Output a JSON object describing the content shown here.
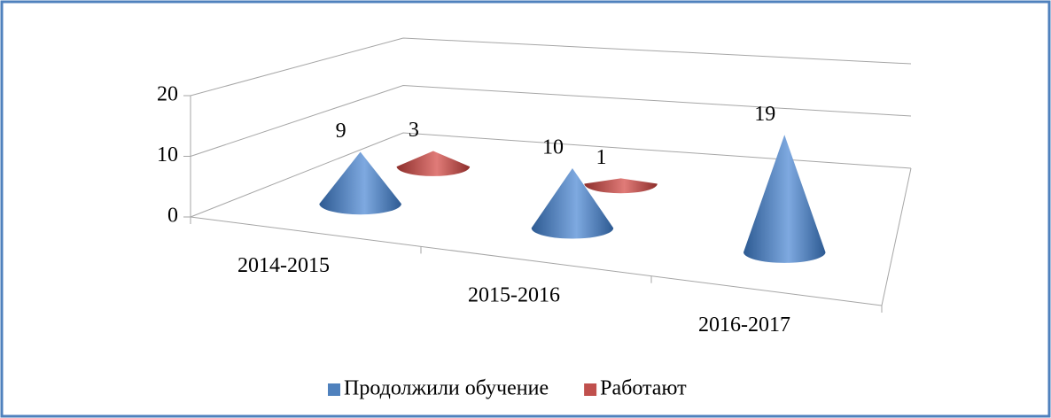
{
  "chart_data": {
    "type": "cone3d",
    "categories": [
      "2014-2015",
      "2015-2016",
      "2016-2017"
    ],
    "series": [
      {
        "name": "Продолжили обучение",
        "color": "#4f81bd",
        "values": [
          9,
          10,
          19
        ]
      },
      {
        "name": "Работают",
        "color": "#c0504d",
        "values": [
          3,
          1,
          null
        ]
      }
    ],
    "ylim": [
      0,
      20
    ],
    "yticks": [
      0,
      10,
      20
    ],
    "grid": true,
    "legend": "bottom"
  }
}
